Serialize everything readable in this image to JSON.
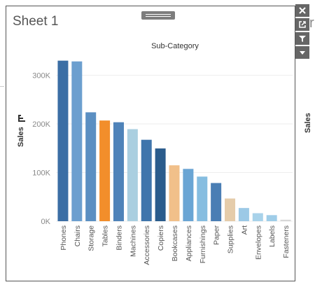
{
  "background": {
    "partial_letter": "r",
    "side_label": "Sales"
  },
  "sheet": {
    "title": "Sheet 1"
  },
  "colors": {
    "blue_dark": "#3a6ea5",
    "blue_mid": "#6a9ecf",
    "blue_light": "#aacfe0",
    "orange": "#f28e2b",
    "tan": "#f1c08a",
    "grid": "#eeeeee"
  },
  "toolbar": {
    "icons": [
      "close-icon",
      "popout-icon",
      "filter-icon",
      "more-icon"
    ]
  },
  "chart_data": {
    "type": "bar",
    "title": "",
    "header": "Sub-Category",
    "xlabel": "",
    "ylabel": "Sales",
    "ylim": [
      0,
      340000
    ],
    "y_ticks": [
      0,
      100000,
      200000,
      300000
    ],
    "y_tick_labels": [
      "0K",
      "100K",
      "200K",
      "300K"
    ],
    "grid": true,
    "categories": [
      "Phones",
      "Chairs",
      "Storage",
      "Tables",
      "Binders",
      "Machines",
      "Accessories",
      "Copiers",
      "Bookcases",
      "Appliances",
      "Furnishings",
      "Paper",
      "Supplies",
      "Art",
      "Envelopes",
      "Labels",
      "Fasteners"
    ],
    "values": [
      330007,
      328449,
      223844,
      206966,
      203413,
      189239,
      167380,
      149528,
      114880,
      107532,
      91705,
      78479,
      46674,
      27119,
      16476,
      12486,
      3024
    ],
    "bar_colors": [
      "#3b6ea5",
      "#6c9fcf",
      "#5b8fc2",
      "#f28e2b",
      "#4f83b9",
      "#aacfe0",
      "#3f75ac",
      "#2b5c8c",
      "#f1c08a",
      "#6aa5d4",
      "#86bde0",
      "#4a7eb4",
      "#e5ccaa",
      "#9cc9e6",
      "#a8d2ea",
      "#9fcde8",
      "#d7d7d7"
    ]
  }
}
